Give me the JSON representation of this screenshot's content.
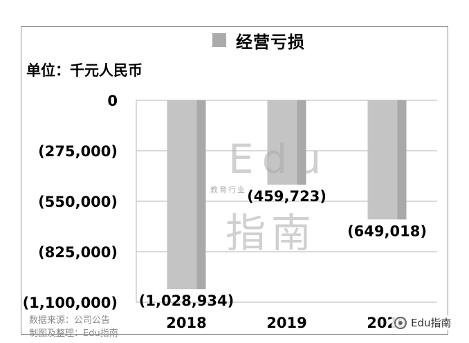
{
  "chart_data": {
    "type": "bar",
    "categories": [
      "2018",
      "2019",
      "2020"
    ],
    "series": [
      {
        "name": "经营亏损",
        "values": [
          -1028934,
          -459723,
          -649018
        ]
      }
    ],
    "data_labels": [
      "(1,028,934)",
      "(459,723)",
      "(649,018)"
    ],
    "ylim": [
      -1100000,
      0
    ],
    "y_ticks": [
      0,
      -275000,
      -550000,
      -825000,
      -1100000
    ],
    "y_tick_labels": [
      "0",
      "(275,000)",
      "(550,000)",
      "(825,000)",
      "(1,100,000)"
    ],
    "unit_label": "单位：千元人民币",
    "legend_position": "top-center",
    "grid": true,
    "bar_color": "#c4c4c4",
    "bar_shade_color": "#a9a9a9"
  },
  "watermark": {
    "logo_text": "Edu",
    "sub_text": "教育行业",
    "name_text": "指南"
  },
  "source_lines": [
    "数据来源：公司公告",
    "制图及整理：Edu指南"
  ],
  "brand": {
    "label": "Edu指南",
    "icon": "wechat-icon"
  }
}
